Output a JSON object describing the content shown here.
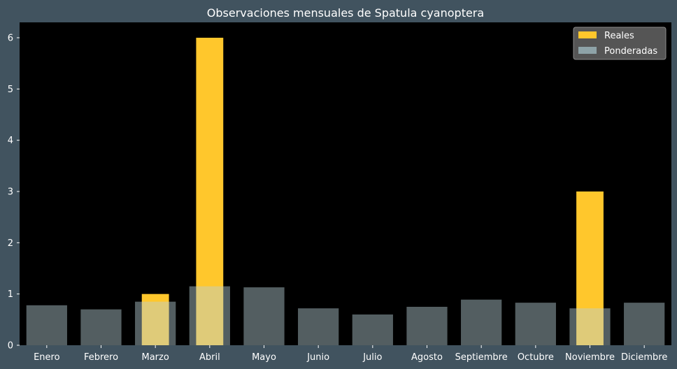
{
  "chart_data": {
    "type": "bar",
    "title": "Observaciones mensuales de Spatula cyanoptera",
    "xlabel": "",
    "ylabel": "",
    "categories": [
      "Enero",
      "Febrero",
      "Marzo",
      "Abril",
      "Mayo",
      "Junio",
      "Julio",
      "Agosto",
      "Septiembre",
      "Octubre",
      "Noviembre",
      "Diciembre"
    ],
    "series": [
      {
        "name": "Reales",
        "color": "#ffc72c",
        "values": [
          0,
          0,
          1,
          6,
          0,
          0,
          0,
          0,
          0,
          0,
          3,
          0
        ]
      },
      {
        "name": "Ponderadas",
        "color": "#b9d1d6",
        "opacity": 0.45,
        "values": [
          0.78,
          0.7,
          0.85,
          1.15,
          1.13,
          0.72,
          0.6,
          0.75,
          0.89,
          0.83,
          0.72,
          0.83
        ]
      }
    ],
    "ylim": [
      0,
      6.3
    ],
    "yticks": [
      0,
      1,
      2,
      3,
      4,
      5,
      6
    ],
    "grid": false,
    "legend": "top-right"
  },
  "colors": {
    "background": "#41535f",
    "plot_background": "#000000",
    "text": "#ffffff"
  }
}
